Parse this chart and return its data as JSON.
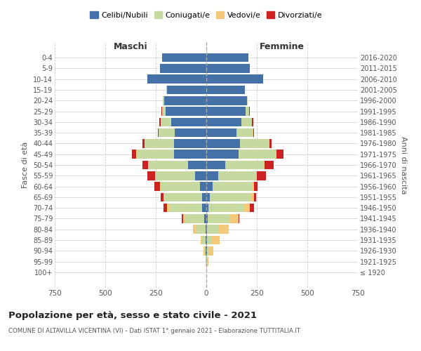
{
  "age_groups": [
    "100+",
    "95-99",
    "90-94",
    "85-89",
    "80-84",
    "75-79",
    "70-74",
    "65-69",
    "60-64",
    "55-59",
    "50-54",
    "45-49",
    "40-44",
    "35-39",
    "30-34",
    "25-29",
    "20-24",
    "15-19",
    "10-14",
    "5-9",
    "0-4"
  ],
  "birth_years": [
    "≤ 1920",
    "1921-1925",
    "1926-1930",
    "1931-1935",
    "1936-1940",
    "1941-1945",
    "1946-1950",
    "1951-1955",
    "1956-1960",
    "1961-1965",
    "1966-1970",
    "1971-1975",
    "1976-1980",
    "1981-1985",
    "1986-1990",
    "1991-1995",
    "1996-2000",
    "2001-2005",
    "2006-2010",
    "2011-2015",
    "2016-2020"
  ],
  "colors": {
    "celibi": "#4472a8",
    "coniugati": "#c5d9a0",
    "vedovi": "#f5c97a",
    "divorziati": "#cc2222"
  },
  "males": {
    "celibi": [
      0,
      1,
      2,
      2,
      5,
      10,
      20,
      22,
      30,
      55,
      90,
      160,
      160,
      155,
      175,
      200,
      210,
      195,
      290,
      230,
      220
    ],
    "coniugati": [
      0,
      3,
      8,
      18,
      45,
      95,
      165,
      185,
      195,
      195,
      195,
      185,
      145,
      80,
      50,
      18,
      5,
      2,
      0,
      0,
      0
    ],
    "vedovi": [
      0,
      1,
      5,
      8,
      15,
      10,
      8,
      5,
      3,
      2,
      2,
      2,
      2,
      1,
      1,
      0,
      0,
      0,
      0,
      0,
      0
    ],
    "divorziati": [
      0,
      0,
      0,
      0,
      0,
      5,
      20,
      12,
      30,
      40,
      30,
      22,
      10,
      5,
      5,
      3,
      0,
      0,
      0,
      0,
      0
    ]
  },
  "females": {
    "celibi": [
      0,
      1,
      2,
      5,
      5,
      8,
      12,
      18,
      30,
      60,
      95,
      160,
      165,
      150,
      175,
      195,
      200,
      190,
      280,
      215,
      210
    ],
    "coniugati": [
      0,
      5,
      12,
      22,
      55,
      110,
      175,
      200,
      195,
      185,
      190,
      185,
      145,
      80,
      50,
      18,
      5,
      2,
      0,
      0,
      0
    ],
    "vedovi": [
      1,
      5,
      20,
      40,
      50,
      40,
      30,
      18,
      10,
      5,
      3,
      2,
      2,
      1,
      1,
      0,
      0,
      0,
      0,
      0,
      0
    ],
    "divorziati": [
      0,
      0,
      0,
      0,
      0,
      5,
      18,
      10,
      18,
      45,
      45,
      35,
      10,
      5,
      5,
      2,
      0,
      0,
      0,
      0,
      0
    ]
  },
  "title": "Popolazione per età, sesso e stato civile - 2021",
  "subtitle": "COMUNE DI ALTAVILLA VICENTINA (VI) - Dati ISTAT 1° gennaio 2021 - Elaborazione TUTTITALIA.IT",
  "xlabel_left": "Maschi",
  "xlabel_right": "Femmine",
  "ylabel_left": "Fasce di età",
  "ylabel_right": "Anni di nascita",
  "xlim": 750,
  "legend_labels": [
    "Celibi/Nubili",
    "Coniugati/e",
    "Vedovi/e",
    "Divorziati/e"
  ],
  "bg_color": "#ffffff",
  "grid_color": "#cccccc"
}
